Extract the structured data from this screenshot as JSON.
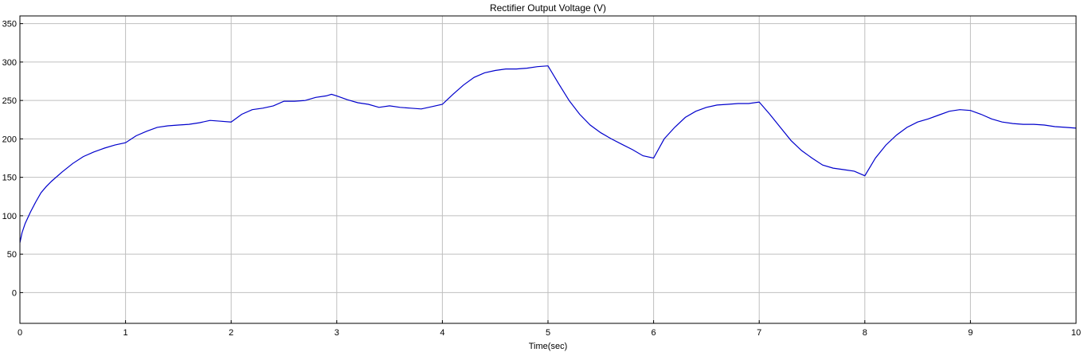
{
  "chart_data": {
    "type": "line",
    "title": "Rectifier Output Voltage (V)",
    "xlabel": "Time(sec)",
    "ylabel": "",
    "xlim": [
      0,
      10
    ],
    "ylim": [
      -40,
      360
    ],
    "xticks": [
      0,
      1,
      2,
      3,
      4,
      5,
      6,
      7,
      8,
      9,
      10
    ],
    "yticks": [
      0,
      50,
      100,
      150,
      200,
      250,
      300,
      350
    ],
    "grid": true,
    "colors": {
      "line": "#0000cc",
      "grid": "#bfbfbf",
      "axis": "#000000"
    },
    "series": [
      {
        "x": [
          0,
          0.02,
          0.05,
          0.1,
          0.15,
          0.2,
          0.25,
          0.3,
          0.4,
          0.5,
          0.6,
          0.7,
          0.8,
          0.9,
          1.0,
          1.1,
          1.2,
          1.3,
          1.4,
          1.5,
          1.6,
          1.7,
          1.8,
          1.9,
          2.0,
          2.1,
          2.2,
          2.3,
          2.4,
          2.5,
          2.6,
          2.7,
          2.8,
          2.9,
          2.95,
          3.0,
          3.1,
          3.2,
          3.3,
          3.4,
          3.5,
          3.6,
          3.7,
          3.8,
          3.9,
          4.0,
          4.1,
          4.2,
          4.3,
          4.4,
          4.5,
          4.6,
          4.7,
          4.8,
          4.9,
          5.0,
          5.1,
          5.2,
          5.3,
          5.4,
          5.5,
          5.6,
          5.7,
          5.8,
          5.9,
          6.0,
          6.1,
          6.2,
          6.3,
          6.4,
          6.5,
          6.6,
          6.7,
          6.8,
          6.9,
          7.0,
          7.1,
          7.2,
          7.3,
          7.4,
          7.5,
          7.6,
          7.7,
          7.8,
          7.9,
          8.0,
          8.1,
          8.2,
          8.3,
          8.4,
          8.5,
          8.6,
          8.7,
          8.8,
          8.9,
          9.0,
          9.1,
          9.2,
          9.3,
          9.4,
          9.5,
          9.6,
          9.7,
          9.8,
          9.9,
          10.0
        ],
        "values": [
          65,
          78,
          90,
          105,
          118,
          130,
          138,
          145,
          157,
          168,
          177,
          183,
          188,
          192,
          195,
          204,
          210,
          215,
          217,
          218,
          219,
          221,
          224,
          223,
          222,
          232,
          238,
          240,
          243,
          249,
          249,
          250,
          254,
          256,
          258,
          256,
          251,
          247,
          245,
          241,
          243,
          241,
          240,
          239,
          242,
          245,
          258,
          270,
          280,
          286,
          289,
          291,
          291,
          292,
          294,
          295,
          272,
          250,
          232,
          218,
          208,
          200,
          193,
          186,
          178,
          175,
          200,
          215,
          228,
          236,
          241,
          244,
          245,
          246,
          246,
          248,
          232,
          215,
          198,
          185,
          175,
          166,
          162,
          160,
          158,
          152,
          175,
          192,
          205,
          215,
          222,
          226,
          231,
          236,
          238,
          237,
          232,
          226,
          222,
          220,
          219,
          219,
          218,
          216,
          215,
          214
        ]
      }
    ]
  }
}
